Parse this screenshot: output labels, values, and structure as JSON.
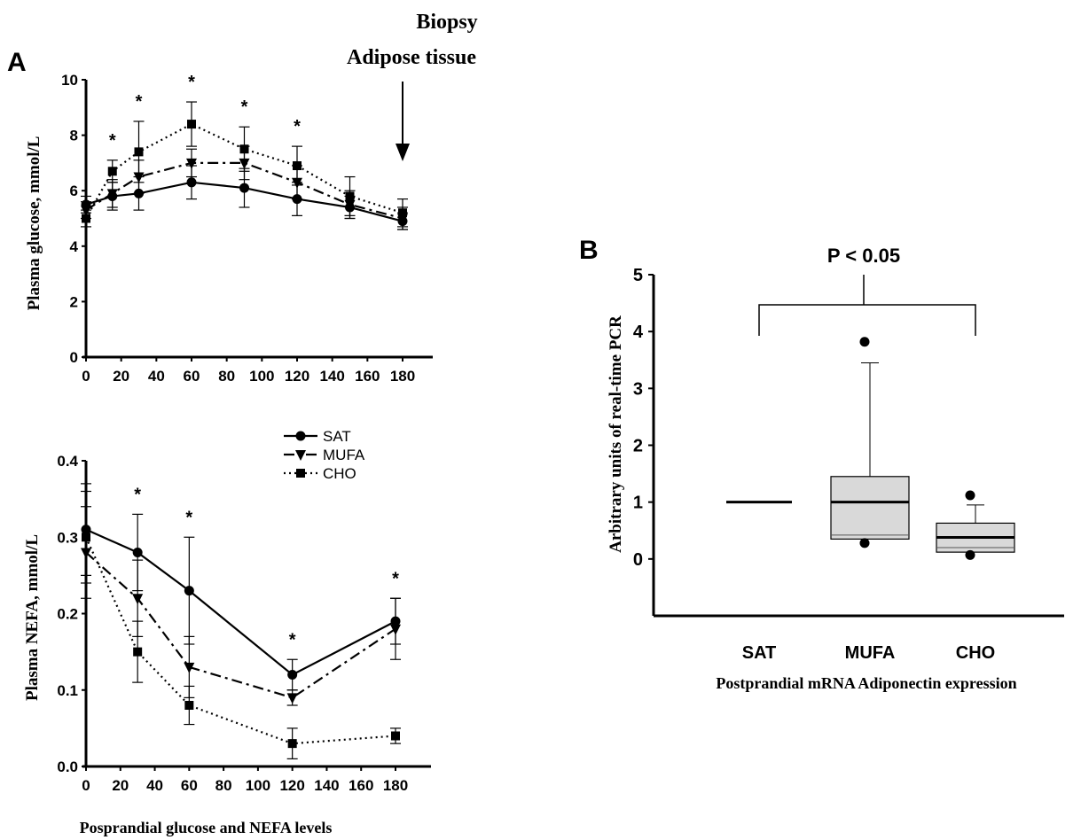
{
  "figure": {
    "label_a": "A",
    "label_b": "B",
    "biopsy_line1": "Biopsy",
    "biopsy_line2": "Adipose tissue",
    "bottom_caption": "Posprandial glucose and NEFA levels"
  },
  "legend": [
    {
      "name": "SAT",
      "style": "solid",
      "marker": "circle"
    },
    {
      "name": "MUFA",
      "style": "dashdot",
      "marker": "triangle-down"
    },
    {
      "name": "CHO",
      "style": "dotted",
      "marker": "square"
    }
  ],
  "chart_data": [
    {
      "type": "line",
      "id": "glucose",
      "ylabel": "Plasma glucose, mmol/L",
      "xlabel": "",
      "xlim": [
        0,
        180
      ],
      "ylim": [
        0,
        10
      ],
      "xticks": [
        "0",
        "20",
        "40",
        "60",
        "80",
        "100",
        "120",
        "140",
        "160",
        "180"
      ],
      "yticks": [
        "0",
        "2",
        "4",
        "6",
        "8",
        "10"
      ],
      "x": [
        0,
        15,
        30,
        60,
        90,
        120,
        150,
        180
      ],
      "series": [
        {
          "name": "SAT",
          "values": [
            5.5,
            5.8,
            5.9,
            6.3,
            6.1,
            5.7,
            5.4,
            4.9
          ],
          "err": [
            0.3,
            0.5,
            0.6,
            0.6,
            0.7,
            0.6,
            0.4,
            0.3
          ]
        },
        {
          "name": "MUFA",
          "values": [
            5.3,
            5.9,
            6.5,
            7.0,
            7.0,
            6.3,
            5.5,
            5.0
          ],
          "err": [
            0.3,
            0.5,
            0.6,
            0.5,
            0.6,
            0.6,
            0.5,
            0.4
          ]
        },
        {
          "name": "CHO",
          "values": [
            5.0,
            6.7,
            7.4,
            8.4,
            7.5,
            6.9,
            5.8,
            5.2
          ],
          "err": [
            0.3,
            0.4,
            1.1,
            0.8,
            0.8,
            0.7,
            0.7,
            0.5
          ]
        }
      ],
      "significance": {
        "x": [
          15,
          30,
          60,
          90,
          120
        ],
        "label": "*"
      }
    },
    {
      "type": "line",
      "id": "nefa",
      "ylabel": "Plasma NEFA, mmol/L",
      "xlabel": "",
      "xlim": [
        0,
        180
      ],
      "ylim": [
        0,
        0.4
      ],
      "xticks": [
        "0",
        "20",
        "40",
        "60",
        "80",
        "100",
        "120",
        "140",
        "160",
        "180"
      ],
      "yticks": [
        "0.0",
        "0.1",
        "0.2",
        "0.3",
        "0.4"
      ],
      "x": [
        0,
        30,
        60,
        120,
        180
      ],
      "series": [
        {
          "name": "SAT",
          "values": [
            0.31,
            0.28,
            0.23,
            0.12,
            0.19
          ],
          "err": [
            0.06,
            0.05,
            0.07,
            0.02,
            0.03
          ]
        },
        {
          "name": "MUFA",
          "values": [
            0.28,
            0.22,
            0.13,
            0.09,
            0.18
          ],
          "err": [
            0.06,
            0.05,
            0.04,
            0.01,
            0.04
          ]
        },
        {
          "name": "CHO",
          "values": [
            0.3,
            0.15,
            0.08,
            0.03,
            0.04
          ],
          "err": [
            0.06,
            0.04,
            0.025,
            0.02,
            0.01
          ]
        }
      ],
      "significance": {
        "x": [
          30,
          60,
          120,
          180
        ],
        "label": "*"
      }
    },
    {
      "type": "box",
      "id": "adiponectin",
      "ylabel": "Arbitrary units of real-time PCR",
      "xlabel": "Postprandial  mRNA Adiponectin expression",
      "ylim": [
        -1,
        5
      ],
      "yticks": [
        "0",
        "1",
        "2",
        "3",
        "4",
        "5"
      ],
      "categories": [
        "SAT",
        "MUFA",
        "CHO"
      ],
      "boxes": [
        {
          "name": "SAT",
          "median": 1.0,
          "q1": 1.0,
          "q3": 1.0,
          "whisker_low": 1.0,
          "whisker_high": 1.0,
          "mean": 1.0,
          "outliers": []
        },
        {
          "name": "MUFA",
          "median": 1.0,
          "q1": 0.35,
          "q3": 1.45,
          "whisker_low": 0.35,
          "whisker_high": 3.45,
          "mean": 0.42,
          "outliers": [
            3.82,
            0.28
          ]
        },
        {
          "name": "CHO",
          "median": 0.38,
          "q1": 0.12,
          "q3": 0.63,
          "whisker_low": 0.12,
          "whisker_high": 0.95,
          "mean": 0.2,
          "outliers": [
            1.12,
            0.07
          ]
        }
      ],
      "annotation": "P < 0.05"
    }
  ]
}
